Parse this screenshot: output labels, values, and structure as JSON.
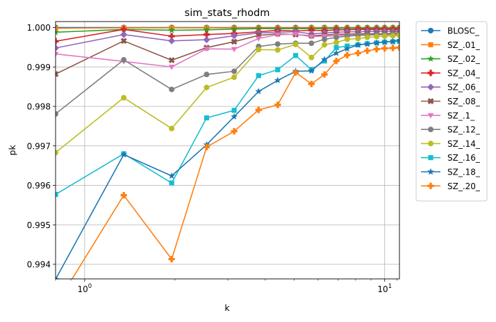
{
  "chart_data": {
    "type": "line",
    "title": "sim_stats_rhodm",
    "xlabel": "k",
    "ylabel": "pk",
    "xscale": "log",
    "xlim": [
      0.8,
      11.2
    ],
    "ylim": [
      0.99363,
      1.00015
    ],
    "x_ticks": [
      {
        "value": 1,
        "label": "10^0"
      },
      {
        "value": 10,
        "label": "10^1"
      }
    ],
    "y_ticks": [
      0.994,
      0.995,
      0.996,
      0.997,
      0.998,
      0.999,
      1.0
    ],
    "y_tick_labels": [
      "0.994",
      "0.995",
      "0.996",
      "0.997",
      "0.998",
      "0.999",
      "1.000"
    ],
    "grid": true,
    "legend_position": "outside-right",
    "x": [
      0.8,
      1.35,
      1.95,
      2.55,
      3.15,
      3.8,
      4.4,
      5.05,
      5.7,
      6.3,
      6.9,
      7.5,
      8.15,
      8.75,
      9.4,
      10.0,
      10.65,
      11.2
    ],
    "series": [
      {
        "name": "BLOSC_",
        "color": "#1f77b4",
        "marker": "circle",
        "values": [
          1.0,
          1.0,
          1.0,
          1.0,
          1.0,
          1.0,
          1.0,
          1.0,
          1.0,
          1.0,
          1.0,
          1.0,
          1.0,
          1.0,
          1.0,
          1.0,
          1.0,
          1.0
        ]
      },
      {
        "name": "SZ_.01_",
        "color": "#ff7f0e",
        "marker": "square",
        "values": [
          0.99998,
          0.99999,
          0.99999,
          0.99999,
          0.99999,
          0.99999,
          0.99999,
          0.99999,
          0.99999,
          0.99999,
          0.99999,
          0.99999,
          0.99999,
          0.99999,
          0.99999,
          0.99999,
          0.99999,
          0.99999
        ]
      },
      {
        "name": "SZ_.02_",
        "color": "#2ca02c",
        "marker": "star",
        "values": [
          0.99988,
          0.99995,
          0.99993,
          0.99994,
          0.99996,
          0.99997,
          0.99997,
          0.99997,
          0.99997,
          0.99997,
          0.99998,
          0.99998,
          0.99998,
          0.99998,
          0.99998,
          0.99998,
          0.99998,
          0.99998
        ]
      },
      {
        "name": "SZ_.04_",
        "color": "#d62728",
        "marker": "plus",
        "values": [
          0.99965,
          0.99995,
          0.99978,
          0.99982,
          0.99985,
          0.99989,
          0.99993,
          0.99991,
          0.99993,
          0.99992,
          0.99994,
          0.99994,
          0.99995,
          0.99995,
          0.99995,
          0.99995,
          0.99995,
          0.99996
        ]
      },
      {
        "name": "SZ_.06_",
        "color": "#9467bd",
        "marker": "diamond",
        "values": [
          0.99948,
          0.99982,
          0.99966,
          0.99969,
          0.99979,
          0.99986,
          0.99988,
          0.99989,
          0.99984,
          0.99986,
          0.99988,
          0.99989,
          0.99989,
          0.9999,
          0.9999,
          0.9999,
          0.9999,
          0.9999
        ]
      },
      {
        "name": "SZ_.08_",
        "color": "#8c564b",
        "marker": "x",
        "values": [
          0.99882,
          0.99966,
          0.99917,
          0.99949,
          0.99964,
          0.9998,
          0.99984,
          0.99982,
          0.99979,
          0.99981,
          0.99983,
          0.99983,
          0.99984,
          0.99984,
          0.99984,
          0.99984,
          0.99985,
          0.99985
        ]
      },
      {
        "name": "SZ_.1_",
        "color": "#e377c2",
        "marker": "triangle-down",
        "values": [
          0.99933,
          0.99914,
          0.999,
          0.99946,
          0.99945,
          0.99972,
          0.99982,
          0.99983,
          0.99977,
          0.99978,
          0.99979,
          0.9998,
          0.99981,
          0.99981,
          0.99982,
          0.99982,
          0.99982,
          0.99982
        ]
      },
      {
        "name": "SZ_.12_",
        "color": "#7f7f7f",
        "marker": "circle",
        "values": [
          0.99781,
          0.99918,
          0.99843,
          0.99881,
          0.99889,
          0.99952,
          0.99958,
          0.9996,
          0.9996,
          0.9997,
          0.99975,
          0.99978,
          0.9998,
          0.99981,
          0.99982,
          0.99982,
          0.99983,
          0.99983
        ]
      },
      {
        "name": "SZ_.14_",
        "color": "#bcbd22",
        "marker": "circle",
        "values": [
          0.99683,
          0.99822,
          0.99744,
          0.99848,
          0.99874,
          0.99944,
          0.99943,
          0.99957,
          0.99924,
          0.99956,
          0.99962,
          0.9997,
          0.99972,
          0.99975,
          0.99977,
          0.99978,
          0.99979,
          0.9998
        ]
      },
      {
        "name": "SZ_.16_",
        "color": "#17becf",
        "marker": "square",
        "values": [
          0.99577,
          0.9968,
          0.99606,
          0.99771,
          0.9979,
          0.99878,
          0.99893,
          0.99929,
          0.99893,
          0.99915,
          0.99949,
          0.99953,
          0.99956,
          0.99959,
          0.99961,
          0.99963,
          0.99964,
          0.99965
        ]
      },
      {
        "name": "SZ_.18_",
        "color": "#1f77b4",
        "marker": "star",
        "values": [
          0.99362,
          0.99678,
          0.99624,
          0.99703,
          0.99774,
          0.99838,
          0.99866,
          0.99889,
          0.9989,
          0.99919,
          0.99935,
          0.99946,
          0.99956,
          0.99958,
          0.99961,
          0.99963,
          0.99965,
          0.99967
        ]
      },
      {
        "name": "SZ_.20_",
        "color": "#ff7f0e",
        "marker": "plus",
        "values": [
          0.99295,
          0.99575,
          0.99413,
          0.99697,
          0.99737,
          0.99791,
          0.99804,
          0.99886,
          0.99857,
          0.99881,
          0.99915,
          0.9993,
          0.99935,
          0.99941,
          0.99945,
          0.99947,
          0.99948,
          0.99949
        ]
      }
    ]
  }
}
